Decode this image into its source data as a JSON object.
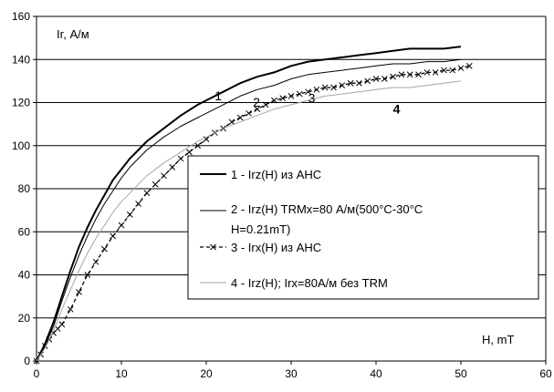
{
  "chart_data": {
    "type": "line",
    "ylabel": "Ir, А/м",
    "xlabel": "H, mT",
    "xlim": [
      0,
      60
    ],
    "ylim": [
      0,
      160
    ],
    "x_ticks": [
      0,
      10,
      20,
      30,
      40,
      50,
      60
    ],
    "y_ticks": [
      0,
      20,
      40,
      60,
      80,
      100,
      120,
      140,
      160
    ],
    "grid": "horizontal",
    "legend_placement": "center-right",
    "series": [
      {
        "name": "1 - Irz(H) из АНС",
        "curve_label": "1",
        "color": "#000000",
        "style": "thick-solid",
        "points": [
          [
            0,
            0
          ],
          [
            1,
            8
          ],
          [
            2,
            18
          ],
          [
            3,
            30
          ],
          [
            4,
            42
          ],
          [
            5,
            53
          ],
          [
            6,
            62
          ],
          [
            7,
            70
          ],
          [
            8,
            77
          ],
          [
            9,
            84
          ],
          [
            10,
            89
          ],
          [
            11,
            94
          ],
          [
            12,
            98
          ],
          [
            13,
            102
          ],
          [
            14,
            105
          ],
          [
            15,
            108
          ],
          [
            17,
            114
          ],
          [
            19,
            119
          ],
          [
            20,
            121
          ],
          [
            22,
            125
          ],
          [
            24,
            129
          ],
          [
            26,
            132
          ],
          [
            28,
            134
          ],
          [
            30,
            137
          ],
          [
            32,
            139
          ],
          [
            34,
            140
          ],
          [
            36,
            141
          ],
          [
            38,
            142
          ],
          [
            40,
            143
          ],
          [
            42,
            144
          ],
          [
            44,
            145
          ],
          [
            46,
            145
          ],
          [
            48,
            145
          ],
          [
            50,
            146
          ]
        ]
      },
      {
        "name": "2 - Irz(H) TRMx=80 А/м(500°С-30°С H=0.21mT)",
        "curve_label": "2",
        "color": "#000000",
        "style": "thin-solid",
        "points": [
          [
            0,
            0
          ],
          [
            1,
            7
          ],
          [
            2,
            16
          ],
          [
            3,
            28
          ],
          [
            4,
            39
          ],
          [
            5,
            49
          ],
          [
            6,
            58
          ],
          [
            7,
            66
          ],
          [
            8,
            73
          ],
          [
            9,
            79
          ],
          [
            10,
            85
          ],
          [
            11,
            90
          ],
          [
            12,
            94
          ],
          [
            13,
            98
          ],
          [
            14,
            101
          ],
          [
            15,
            104
          ],
          [
            17,
            109
          ],
          [
            19,
            113
          ],
          [
            20,
            115
          ],
          [
            22,
            119
          ],
          [
            24,
            123
          ],
          [
            26,
            126
          ],
          [
            28,
            128
          ],
          [
            30,
            131
          ],
          [
            32,
            133
          ],
          [
            34,
            134
          ],
          [
            36,
            135
          ],
          [
            38,
            136
          ],
          [
            40,
            137
          ],
          [
            42,
            138
          ],
          [
            44,
            138
          ],
          [
            46,
            139
          ],
          [
            48,
            139
          ],
          [
            50,
            140
          ]
        ]
      },
      {
        "name": "3 - Irx(H) из АНС",
        "curve_label": "3",
        "color": "#000000",
        "style": "dashed-cross",
        "points": [
          [
            0,
            0
          ],
          [
            0.5,
            3
          ],
          [
            1,
            7
          ],
          [
            1.5,
            10
          ],
          [
            2,
            13
          ],
          [
            2.5,
            15
          ],
          [
            3,
            17
          ],
          [
            4,
            24
          ],
          [
            5,
            32
          ],
          [
            6,
            40
          ],
          [
            7,
            46
          ],
          [
            8,
            52
          ],
          [
            9,
            58
          ],
          [
            10,
            63
          ],
          [
            11,
            68
          ],
          [
            12,
            73
          ],
          [
            13,
            78
          ],
          [
            14,
            82
          ],
          [
            15,
            86
          ],
          [
            16,
            90
          ],
          [
            17,
            94
          ],
          [
            18,
            97
          ],
          [
            19,
            100
          ],
          [
            20,
            103
          ],
          [
            21,
            106
          ],
          [
            22,
            108
          ],
          [
            23,
            111
          ],
          [
            24,
            113
          ],
          [
            25,
            115
          ],
          [
            26,
            117
          ],
          [
            27,
            119
          ],
          [
            28,
            121
          ],
          [
            29,
            122
          ],
          [
            30,
            123
          ],
          [
            31,
            124
          ],
          [
            32,
            125
          ],
          [
            33,
            126
          ],
          [
            34,
            127
          ],
          [
            35,
            127
          ],
          [
            36,
            128
          ],
          [
            37,
            129
          ],
          [
            38,
            129
          ],
          [
            39,
            130
          ],
          [
            40,
            131
          ],
          [
            41,
            131
          ],
          [
            42,
            132
          ],
          [
            43,
            133
          ],
          [
            44,
            133
          ],
          [
            45,
            133
          ],
          [
            46,
            134
          ],
          [
            47,
            134
          ],
          [
            48,
            135
          ],
          [
            49,
            135
          ],
          [
            50,
            136
          ],
          [
            51,
            137
          ]
        ]
      },
      {
        "name": "4 - Irz(H); Irx=80А/м без TRM",
        "curve_label": "4",
        "color": "#a6a6a6",
        "style": "thin-solid",
        "points": [
          [
            0,
            0
          ],
          [
            1,
            6
          ],
          [
            2,
            14
          ],
          [
            3,
            24
          ],
          [
            4,
            33
          ],
          [
            5,
            42
          ],
          [
            6,
            50
          ],
          [
            7,
            57
          ],
          [
            8,
            63
          ],
          [
            9,
            69
          ],
          [
            10,
            74
          ],
          [
            11,
            78
          ],
          [
            12,
            82
          ],
          [
            13,
            86
          ],
          [
            14,
            89
          ],
          [
            15,
            92
          ],
          [
            17,
            97
          ],
          [
            19,
            102
          ],
          [
            20,
            104
          ],
          [
            22,
            108
          ],
          [
            24,
            111
          ],
          [
            26,
            114
          ],
          [
            28,
            117
          ],
          [
            30,
            119
          ],
          [
            32,
            121
          ],
          [
            34,
            123
          ],
          [
            36,
            124
          ],
          [
            38,
            125
          ],
          [
            40,
            126
          ],
          [
            42,
            127
          ],
          [
            44,
            127
          ],
          [
            46,
            128
          ],
          [
            48,
            129
          ],
          [
            50,
            130
          ]
        ]
      }
    ]
  },
  "legend": {
    "entries": [
      {
        "label": "1 - Irz(H) из АНС",
        "style": "thick-solid",
        "color": "#000000"
      },
      {
        "label": "2 - Irz(H) TRMx=80 А/м(500°С-30°С",
        "label_line2": "H=0.21mT)",
        "style": "thin-solid",
        "color": "#000000"
      },
      {
        "label": "3 - Irx(H) из АНС",
        "style": "dashed-cross",
        "color": "#000000"
      },
      {
        "label": "4 - Irz(H); Irx=80А/м без TRM",
        "style": "thin-solid",
        "color": "#a6a6a6"
      }
    ]
  }
}
